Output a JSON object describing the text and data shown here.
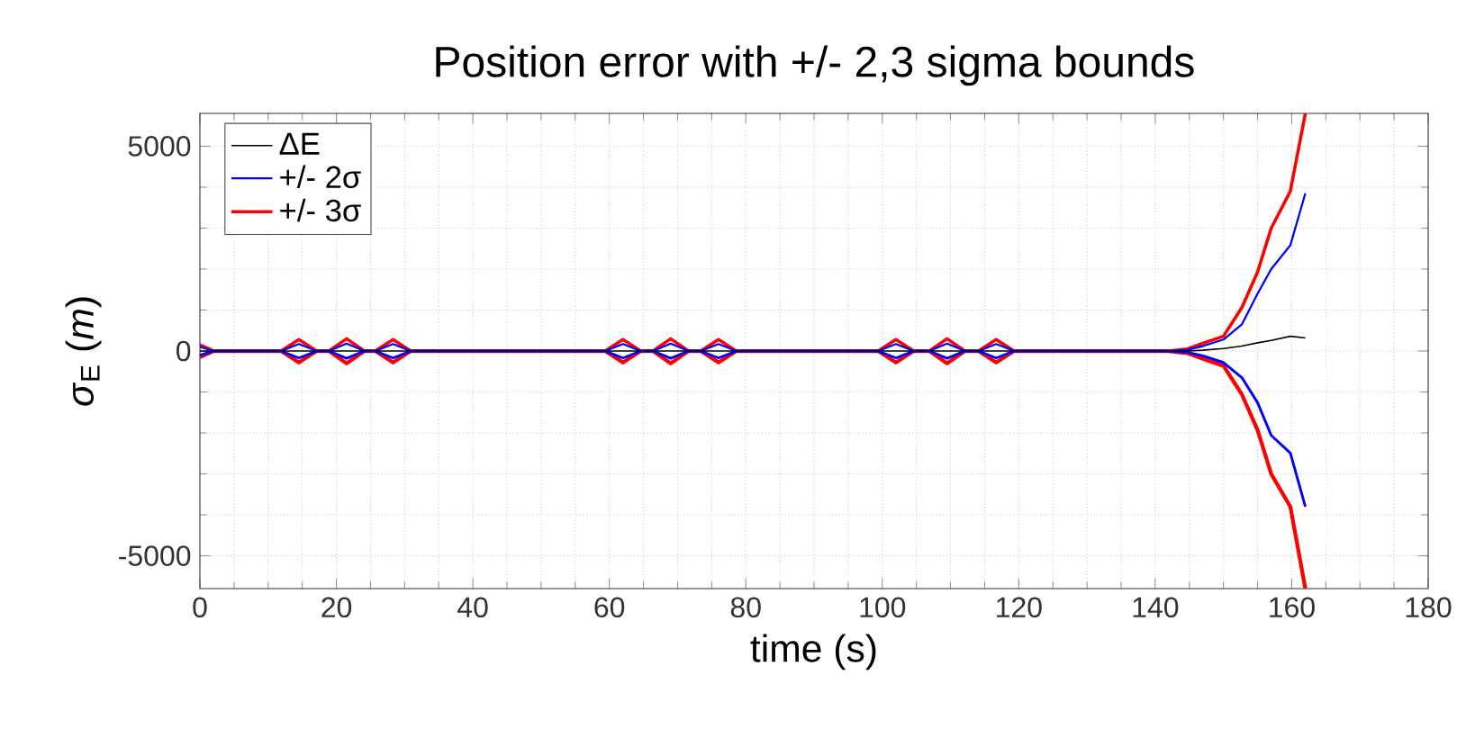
{
  "chart_data": {
    "type": "line",
    "title": "Position error with +/- 2,3 sigma bounds",
    "xlabel": "time (s)",
    "ylabel": "*σ*$_{E}$ (*m*)",
    "x": [
      0,
      2,
      11.9,
      14.5,
      17.1,
      18.9,
      21.5,
      24.1,
      25.7,
      28.3,
      30.9,
      59.4,
      62,
      64.6,
      66.4,
      69,
      71.6,
      73.4,
      76,
      78.6,
      99.4,
      102,
      104.6,
      106.9,
      109.5,
      112.1,
      114.1,
      116.7,
      119.3,
      142,
      144.7,
      147,
      150,
      152.7,
      155,
      157,
      159.8,
      162
    ],
    "series": [
      {
        "name": "ΔE",
        "color": "#000000",
        "values": [
          0,
          0,
          0,
          0,
          0,
          0,
          0,
          0,
          0,
          0,
          0,
          0,
          0,
          0,
          0,
          0,
          0,
          0,
          0,
          0,
          0,
          0,
          0,
          0,
          0,
          0,
          0,
          0,
          0,
          null,
          0,
          20,
          60,
          120,
          200,
          260,
          360,
          320
        ]
      },
      {
        "name": "+/- 2σ",
        "color": "#0000ff",
        "values": [
          100,
          0,
          0,
          170,
          0,
          0,
          180,
          0,
          0,
          170,
          0,
          0,
          170,
          0,
          0,
          180,
          0,
          0,
          170,
          0,
          0,
          170,
          0,
          0,
          180,
          0,
          0,
          170,
          0,
          0,
          30,
          120,
          280,
          650,
          1400,
          2000,
          2580,
          3850
        ]
      },
      {
        "color": "#0000ff",
        "values": [
          -100,
          0,
          0,
          -170,
          0,
          0,
          -180,
          0,
          0,
          -170,
          0,
          0,
          -170,
          0,
          0,
          -180,
          0,
          0,
          -170,
          0,
          0,
          -170,
          0,
          0,
          -180,
          0,
          0,
          -170,
          0,
          0,
          -30,
          -120,
          -280,
          -650,
          -1260,
          -2060,
          -2490,
          -3800
        ]
      },
      {
        "name": "+/- 3σ",
        "color": "#ff0000",
        "values": [
          150,
          0,
          0,
          280,
          0,
          0,
          300,
          0,
          0,
          280,
          0,
          0,
          280,
          0,
          0,
          300,
          0,
          0,
          280,
          0,
          0,
          280,
          0,
          0,
          300,
          0,
          0,
          280,
          0,
          0,
          50,
          190,
          360,
          1060,
          1930,
          3000,
          3900,
          5800
        ]
      },
      {
        "color": "#ff0000",
        "values": [
          -150,
          0,
          0,
          -280,
          0,
          0,
          -300,
          0,
          0,
          -280,
          0,
          0,
          -280,
          0,
          0,
          -300,
          0,
          0,
          -280,
          0,
          0,
          -280,
          0,
          0,
          -300,
          0,
          0,
          -280,
          0,
          0,
          -50,
          -190,
          -360,
          -1060,
          -1930,
          -3000,
          -3800,
          -5800
        ]
      }
    ],
    "xlim": [
      0,
      180
    ],
    "ylim": [
      -5800,
      5800
    ],
    "xticks": [
      0,
      20,
      40,
      60,
      80,
      100,
      120,
      140,
      160,
      180
    ],
    "yticks": [
      -5000,
      0,
      5000
    ],
    "grid": true,
    "legend": "top left",
    "marker": "none",
    "line_style": "solid"
  }
}
